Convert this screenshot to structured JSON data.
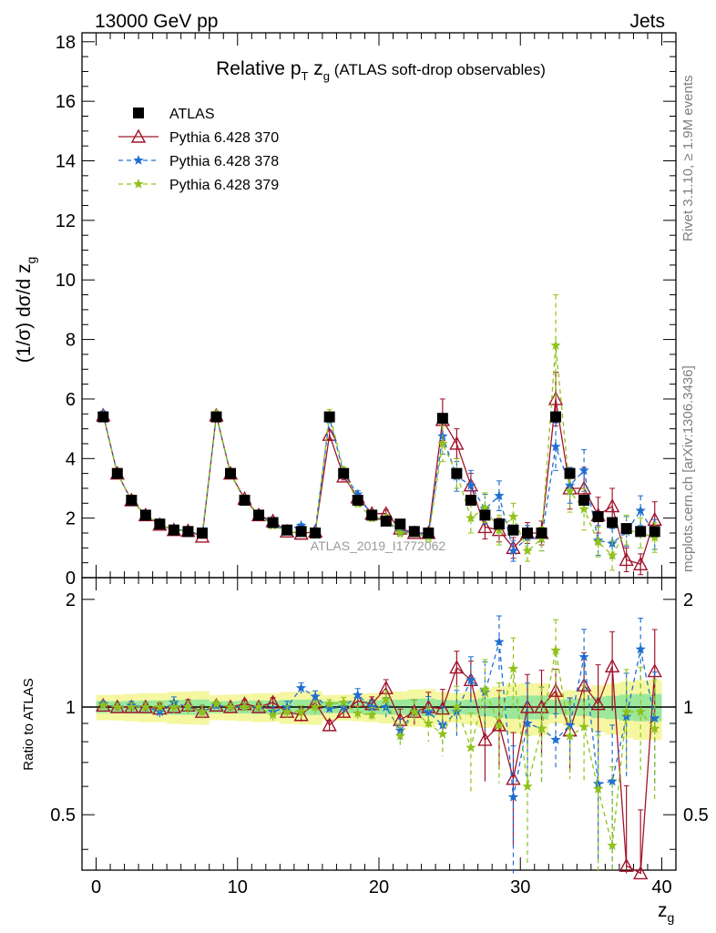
{
  "header": {
    "left": "13000 GeV pp",
    "right": "Jets"
  },
  "side_labels": {
    "rivet": "Rivet 3.1.10, ≥ 1.9M events",
    "mcplots": "mcplots.cern.ch [arXiv:1306.3436]"
  },
  "chart_data": {
    "type": "scatter",
    "title_main": "Relative p",
    "title_sub_T": "T",
    "title_var": " z",
    "title_sub_g": "g",
    "title_rest": " (ATLAS soft-drop observables)",
    "watermark": "ATLAS_2019_I1772062",
    "ylabel_prefix": "(1/σ) dσ/d z",
    "ylabel_sub": "g",
    "xlabel": "z",
    "xlabel_sub": "g",
    "ratio_ylabel": "Ratio to ATLAS",
    "xlim": [
      -1,
      41
    ],
    "ylim": [
      0,
      18.3
    ],
    "ratio_ylim": [
      0.35,
      2.3
    ],
    "x_ticks": [
      "0",
      "10",
      "20",
      "30",
      "40"
    ],
    "x_tick_values": [
      0,
      10,
      20,
      30,
      40
    ],
    "y_ticks": [
      "0",
      "2",
      "4",
      "6",
      "8",
      "10",
      "12",
      "14",
      "16",
      "18"
    ],
    "y_tick_values": [
      0,
      2,
      4,
      6,
      8,
      10,
      12,
      14,
      16,
      18
    ],
    "ratio_ticks": [
      "0.5",
      "1",
      "2"
    ],
    "ratio_tick_values": [
      0.5,
      1,
      2
    ],
    "legend_position": "top-left",
    "x": [
      0.5,
      1.5,
      2.5,
      3.5,
      4.5,
      5.5,
      6.5,
      7.5,
      8.5,
      9.5,
      10.5,
      11.5,
      12.5,
      13.5,
      14.5,
      15.5,
      16.5,
      17.5,
      18.5,
      19.5,
      20.5,
      21.5,
      22.5,
      23.5,
      24.5,
      25.5,
      26.5,
      27.5,
      28.5,
      29.5,
      30.5,
      31.5,
      32.5,
      33.5,
      34.5,
      35.5,
      36.5,
      37.5,
      38.5,
      39.5
    ],
    "series": [
      {
        "name": "ATLAS",
        "color": "#000000",
        "marker": "square",
        "values": [
          5.4,
          3.5,
          2.6,
          2.1,
          1.8,
          1.6,
          1.55,
          1.5,
          5.4,
          3.5,
          2.6,
          2.1,
          1.85,
          1.6,
          1.55,
          1.5,
          5.4,
          3.5,
          2.6,
          2.1,
          1.9,
          1.8,
          1.55,
          1.5,
          5.35,
          3.5,
          2.6,
          2.1,
          1.8,
          1.6,
          1.5,
          1.5,
          5.4,
          3.5,
          2.6,
          2.05,
          1.85,
          1.65,
          1.55,
          1.55
        ],
        "errors": [
          0.15,
          0.1,
          0.08,
          0.07,
          0.06,
          0.06,
          0.06,
          0.06,
          0.15,
          0.1,
          0.08,
          0.07,
          0.06,
          0.06,
          0.06,
          0.06,
          0.15,
          0.1,
          0.08,
          0.07,
          0.07,
          0.07,
          0.07,
          0.07,
          0.2,
          0.12,
          0.1,
          0.1,
          0.1,
          0.1,
          0.1,
          0.1,
          0.2,
          0.15,
          0.12,
          0.12,
          0.12,
          0.12,
          0.12,
          0.12
        ]
      },
      {
        "name": "Pythia 6.428 370",
        "color": "#a0142a",
        "marker": "open-triangle",
        "line": "solid",
        "values": [
          5.45,
          3.5,
          2.6,
          2.1,
          1.78,
          1.6,
          1.57,
          1.38,
          5.45,
          3.5,
          2.65,
          2.1,
          1.9,
          1.55,
          1.48,
          1.55,
          4.8,
          3.4,
          2.7,
          2.15,
          2.15,
          1.65,
          1.5,
          1.5,
          5.3,
          4.5,
          3.1,
          1.7,
          1.6,
          1.0,
          1.5,
          1.5,
          6.0,
          3.0,
          3.0,
          2.1,
          2.4,
          0.6,
          0.45,
          1.95
        ],
        "errors": [
          0.1,
          0.08,
          0.07,
          0.06,
          0.06,
          0.06,
          0.06,
          0.06,
          0.1,
          0.08,
          0.07,
          0.06,
          0.06,
          0.06,
          0.06,
          0.06,
          0.15,
          0.12,
          0.12,
          0.1,
          0.12,
          0.12,
          0.12,
          0.15,
          0.7,
          0.5,
          0.4,
          0.4,
          0.4,
          0.35,
          0.35,
          0.4,
          0.9,
          0.7,
          0.7,
          0.6,
          0.6,
          0.4,
          0.35,
          0.6
        ],
        "ratio": [
          1.01,
          1.0,
          1.0,
          1.0,
          0.99,
          1.0,
          1.01,
          0.97,
          1.01,
          1.0,
          1.02,
          1.0,
          1.03,
          0.97,
          0.95,
          1.03,
          0.89,
          0.97,
          1.04,
          1.02,
          1.13,
          0.92,
          0.97,
          1.0,
          0.99,
          1.29,
          1.19,
          0.81,
          0.89,
          0.63,
          1.0,
          1.0,
          1.11,
          0.86,
          1.15,
          1.02,
          1.3,
          0.36,
          0.29,
          1.26
        ]
      },
      {
        "name": "Pythia 6.428 378",
        "color": "#1f6fd0",
        "marker": "star",
        "line": "dashed",
        "values": [
          5.5,
          3.5,
          2.6,
          2.1,
          1.75,
          1.65,
          1.55,
          1.45,
          5.45,
          3.5,
          2.6,
          2.1,
          1.8,
          1.6,
          1.75,
          1.6,
          5.35,
          3.5,
          2.8,
          2.1,
          1.9,
          1.55,
          1.5,
          1.45,
          4.75,
          3.4,
          3.1,
          2.3,
          2.75,
          0.9,
          1.35,
          1.3,
          4.4,
          3.1,
          3.6,
          1.25,
          1.15,
          1.55,
          2.25,
          1.45
        ],
        "errors": [
          0.1,
          0.08,
          0.07,
          0.06,
          0.06,
          0.06,
          0.06,
          0.06,
          0.1,
          0.08,
          0.07,
          0.06,
          0.06,
          0.06,
          0.06,
          0.06,
          0.15,
          0.12,
          0.12,
          0.1,
          0.12,
          0.12,
          0.12,
          0.15,
          0.6,
          0.5,
          0.5,
          0.5,
          0.5,
          0.35,
          0.4,
          0.4,
          0.8,
          0.6,
          0.7,
          0.5,
          0.5,
          0.5,
          0.5,
          0.5
        ],
        "ratio": [
          1.02,
          1.0,
          1.01,
          1.0,
          0.97,
          1.03,
          1.0,
          0.97,
          1.01,
          1.0,
          1.0,
          1.0,
          0.97,
          1.0,
          1.13,
          1.07,
          0.99,
          1.0,
          1.08,
          1.0,
          1.0,
          0.86,
          0.97,
          0.97,
          0.89,
          0.97,
          1.19,
          1.1,
          1.52,
          0.56,
          0.9,
          0.87,
          0.81,
          0.89,
          1.38,
          0.61,
          0.62,
          0.94,
          1.45,
          0.93
        ]
      },
      {
        "name": "Pythia 6.428 379",
        "color": "#8fc21a",
        "marker": "star",
        "line": "dashed",
        "values": [
          5.45,
          3.5,
          2.6,
          2.1,
          1.8,
          1.6,
          1.55,
          1.45,
          5.5,
          3.5,
          2.6,
          2.1,
          1.75,
          1.55,
          1.5,
          1.5,
          5.5,
          3.6,
          2.5,
          2.0,
          2.0,
          1.5,
          1.5,
          1.35,
          4.5,
          3.5,
          2.0,
          2.35,
          1.6,
          2.05,
          0.9,
          1.3,
          7.8,
          2.9,
          2.3,
          1.2,
          0.75,
          1.6,
          1.5,
          1.35
        ],
        "errors": [
          0.1,
          0.08,
          0.07,
          0.06,
          0.06,
          0.06,
          0.06,
          0.06,
          0.1,
          0.08,
          0.07,
          0.06,
          0.06,
          0.06,
          0.06,
          0.06,
          0.15,
          0.12,
          0.12,
          0.1,
          0.12,
          0.12,
          0.12,
          0.15,
          0.6,
          0.5,
          0.5,
          0.5,
          0.5,
          0.45,
          0.35,
          0.4,
          1.7,
          0.7,
          0.7,
          0.5,
          0.5,
          0.5,
          0.5,
          0.5
        ],
        "ratio": [
          1.01,
          1.0,
          1.0,
          1.0,
          1.0,
          1.0,
          1.0,
          0.97,
          1.02,
          1.0,
          1.0,
          1.0,
          0.95,
          0.97,
          0.97,
          1.0,
          1.02,
          1.03,
          0.96,
          0.95,
          1.05,
          0.83,
          0.97,
          0.9,
          0.84,
          1.0,
          0.77,
          1.12,
          0.89,
          1.28,
          0.6,
          0.87,
          1.44,
          0.83,
          0.88,
          0.59,
          0.41,
          0.97,
          0.97,
          0.87
        ]
      }
    ]
  }
}
